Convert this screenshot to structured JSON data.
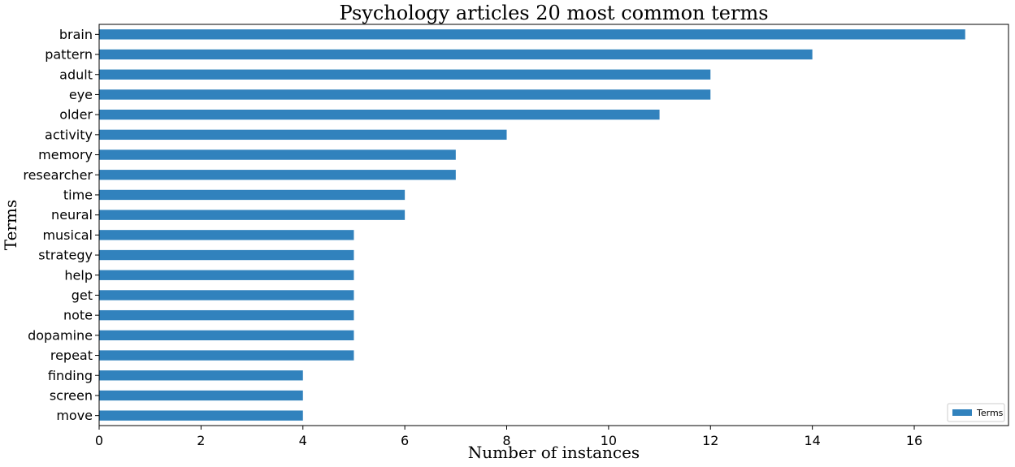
{
  "chart_data": {
    "type": "bar",
    "orientation": "horizontal",
    "title": "Psychology articles 20 most common terms",
    "xlabel": "Number of instances",
    "ylabel": "Terms",
    "categories": [
      "brain",
      "pattern",
      "adult",
      "eye",
      "older",
      "activity",
      "memory",
      "researcher",
      "time",
      "neural",
      "musical",
      "strategy",
      "help",
      "get",
      "note",
      "dopamine",
      "repeat",
      "finding",
      "screen",
      "move"
    ],
    "series": [
      {
        "name": "Terms",
        "values": [
          17,
          14,
          12,
          12,
          11,
          8,
          7,
          7,
          6,
          6,
          5,
          5,
          5,
          5,
          5,
          5,
          5,
          4,
          4,
          4
        ]
      }
    ],
    "xlim": [
      0,
      17.85
    ],
    "xticks": [
      0,
      2,
      4,
      6,
      8,
      10,
      12,
      14,
      16
    ],
    "grid": false,
    "legend": "bottom-right",
    "bar_color": "#3182bd"
  }
}
